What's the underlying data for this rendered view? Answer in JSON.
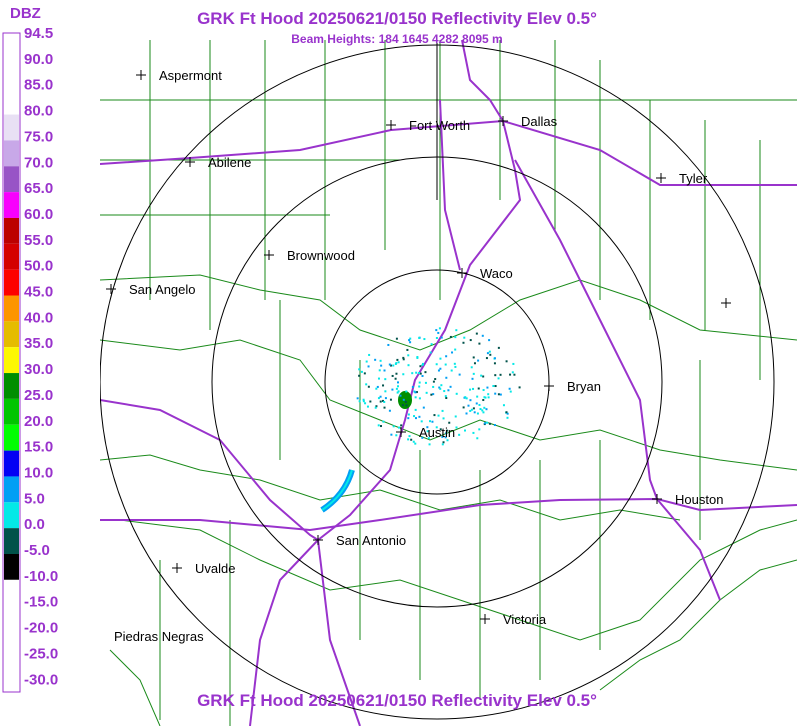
{
  "header": {
    "title": "GRK Ft Hood 20250621/0150 Reflectivity Elev 0.5°",
    "subtitle": "Beam Heights: 184 1645 4282 8095 m",
    "footer": "GRK Ft Hood 20250621/0150 Reflectivity Elev 0.5°"
  },
  "legend": {
    "title": "DBZ",
    "labels": [
      "94.5",
      "90.0",
      "85.0",
      "80.0",
      "75.0",
      "70.0",
      "65.0",
      "60.0",
      "55.0",
      "50.0",
      "45.0",
      "40.0",
      "35.0",
      "30.0",
      "25.0",
      "20.0",
      "15.0",
      "10.0",
      "5.0",
      "0.0",
      "-5.0",
      "-10.0",
      "-15.0",
      "-20.0",
      "-25.0",
      "-30.0"
    ],
    "colors": [
      "#ffffff",
      "#ffffff",
      "#ffffff",
      "#e8e0f4",
      "#c8a8e8",
      "#9854c6",
      "#f800fd",
      "#bc0000",
      "#d40000",
      "#fd0000",
      "#fd9500",
      "#e5bc00",
      "#fdf802",
      "#008e00",
      "#01c501",
      "#02fd02",
      "#0300f4",
      "#019ff4",
      "#04e9e7",
      "#00524a",
      "#000000",
      "#ffffff",
      "#ffffff",
      "#ffffff",
      "#ffffff"
    ]
  },
  "cities": [
    "Aspermont",
    "Fort Worth",
    "Dallas",
    "Abilene",
    "Tyler",
    "Brownwood",
    "Waco",
    "San Angelo",
    "Bryan",
    "Austin",
    "Houston",
    "San Antonio",
    "Uvalde",
    "Piedras Negras",
    "Victoria"
  ]
}
